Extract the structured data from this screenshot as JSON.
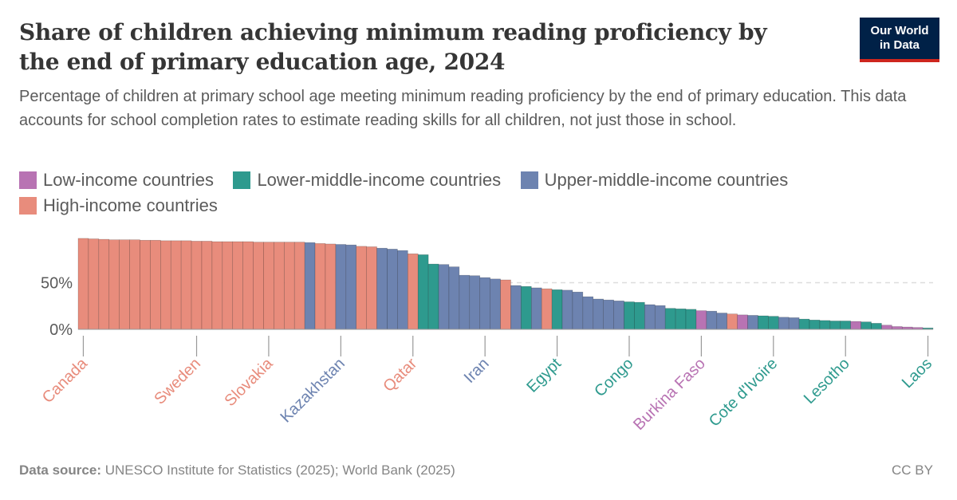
{
  "header": {
    "title": "Share of children achieving minimum reading proficiency by the end of primary education age, 2024",
    "subtitle": "Percentage of children at primary school age meeting minimum reading proficiency by the end of primary education. This data accounts for school completion rates to estimate reading skills for all children, not just those in school.",
    "logo_line1": "Our World",
    "logo_line2": "in Data"
  },
  "legend": [
    {
      "label": "Low-income countries",
      "color": "#b873b3"
    },
    {
      "label": "Lower-middle-income countries",
      "color": "#2e9a8e"
    },
    {
      "label": "Upper-middle-income countries",
      "color": "#6d83b0"
    },
    {
      "label": "High-income countries",
      "color": "#e88c7c"
    }
  ],
  "footer": {
    "source_label": "Data source:",
    "source_text": "UNESCO Institute for Statistics (2025); World Bank (2025)",
    "license": "CC BY"
  },
  "chart_data": {
    "type": "bar",
    "ylabel": "",
    "ylim": [
      0,
      100
    ],
    "yticks": [
      "0%",
      "50%"
    ],
    "yticks_values": [
      0,
      50
    ],
    "colors": {
      "L": "#b873b3",
      "LM": "#2e9a8e",
      "UM": "#6d83b0",
      "H": "#e88c7c"
    },
    "labeled_countries": [
      {
        "label": "Canada",
        "index": 0,
        "group": "H"
      },
      {
        "label": "Sweden",
        "index": 11,
        "group": "H"
      },
      {
        "label": "Slovakia",
        "index": 18,
        "group": "H"
      },
      {
        "label": "Kazakhstan",
        "index": 25,
        "group": "UM"
      },
      {
        "label": "Qatar",
        "index": 32,
        "group": "H"
      },
      {
        "label": "Iran",
        "index": 39,
        "group": "UM"
      },
      {
        "label": "Egypt",
        "index": 46,
        "group": "LM"
      },
      {
        "label": "Congo",
        "index": 53,
        "group": "LM"
      },
      {
        "label": "Burkina Faso",
        "index": 60,
        "group": "L"
      },
      {
        "label": "Cote d'Ivoire",
        "index": 67,
        "group": "LM"
      },
      {
        "label": "Lesotho",
        "index": 74,
        "group": "LM"
      },
      {
        "label": "Laos",
        "index": 82,
        "group": "LM"
      }
    ],
    "bars": [
      {
        "value": 97.5,
        "group": "H"
      },
      {
        "value": 97,
        "group": "H"
      },
      {
        "value": 96.5,
        "group": "H"
      },
      {
        "value": 96,
        "group": "H"
      },
      {
        "value": 96,
        "group": "H"
      },
      {
        "value": 96,
        "group": "H"
      },
      {
        "value": 95.5,
        "group": "H"
      },
      {
        "value": 95.5,
        "group": "H"
      },
      {
        "value": 95,
        "group": "H"
      },
      {
        "value": 95,
        "group": "H"
      },
      {
        "value": 95,
        "group": "H"
      },
      {
        "value": 94.5,
        "group": "H"
      },
      {
        "value": 94.5,
        "group": "H"
      },
      {
        "value": 94,
        "group": "H"
      },
      {
        "value": 94,
        "group": "H"
      },
      {
        "value": 94,
        "group": "H"
      },
      {
        "value": 94,
        "group": "H"
      },
      {
        "value": 93.5,
        "group": "H"
      },
      {
        "value": 93.5,
        "group": "H"
      },
      {
        "value": 93.5,
        "group": "H"
      },
      {
        "value": 93.5,
        "group": "H"
      },
      {
        "value": 93.5,
        "group": "H"
      },
      {
        "value": 93,
        "group": "UM"
      },
      {
        "value": 92,
        "group": "H"
      },
      {
        "value": 91.5,
        "group": "H"
      },
      {
        "value": 91,
        "group": "UM"
      },
      {
        "value": 90.5,
        "group": "UM"
      },
      {
        "value": 89,
        "group": "H"
      },
      {
        "value": 88.5,
        "group": "H"
      },
      {
        "value": 87,
        "group": "UM"
      },
      {
        "value": 86,
        "group": "UM"
      },
      {
        "value": 84.5,
        "group": "UM"
      },
      {
        "value": 81,
        "group": "H"
      },
      {
        "value": 80,
        "group": "LM"
      },
      {
        "value": 70,
        "group": "LM"
      },
      {
        "value": 69.5,
        "group": "UM"
      },
      {
        "value": 67,
        "group": "UM"
      },
      {
        "value": 58,
        "group": "UM"
      },
      {
        "value": 57.5,
        "group": "UM"
      },
      {
        "value": 55.5,
        "group": "UM"
      },
      {
        "value": 54,
        "group": "UM"
      },
      {
        "value": 53,
        "group": "H"
      },
      {
        "value": 47,
        "group": "UM"
      },
      {
        "value": 46,
        "group": "LM"
      },
      {
        "value": 44.5,
        "group": "UM"
      },
      {
        "value": 43.5,
        "group": "H"
      },
      {
        "value": 42.5,
        "group": "LM"
      },
      {
        "value": 42,
        "group": "UM"
      },
      {
        "value": 40,
        "group": "UM"
      },
      {
        "value": 35,
        "group": "UM"
      },
      {
        "value": 32.5,
        "group": "UM"
      },
      {
        "value": 31.5,
        "group": "UM"
      },
      {
        "value": 30.5,
        "group": "UM"
      },
      {
        "value": 29.5,
        "group": "LM"
      },
      {
        "value": 29,
        "group": "LM"
      },
      {
        "value": 26.5,
        "group": "UM"
      },
      {
        "value": 25.5,
        "group": "UM"
      },
      {
        "value": 22.5,
        "group": "LM"
      },
      {
        "value": 22,
        "group": "LM"
      },
      {
        "value": 21.5,
        "group": "LM"
      },
      {
        "value": 20,
        "group": "L"
      },
      {
        "value": 19.5,
        "group": "UM"
      },
      {
        "value": 17.5,
        "group": "UM"
      },
      {
        "value": 16.5,
        "group": "H"
      },
      {
        "value": 15.5,
        "group": "L"
      },
      {
        "value": 15,
        "group": "UM"
      },
      {
        "value": 14.5,
        "group": "LM"
      },
      {
        "value": 14,
        "group": "LM"
      },
      {
        "value": 13,
        "group": "UM"
      },
      {
        "value": 12.5,
        "group": "UM"
      },
      {
        "value": 11,
        "group": "LM"
      },
      {
        "value": 10,
        "group": "LM"
      },
      {
        "value": 9.5,
        "group": "LM"
      },
      {
        "value": 9,
        "group": "LM"
      },
      {
        "value": 9,
        "group": "LM"
      },
      {
        "value": 8.5,
        "group": "L"
      },
      {
        "value": 8,
        "group": "LM"
      },
      {
        "value": 6.5,
        "group": "LM"
      },
      {
        "value": 4.5,
        "group": "L"
      },
      {
        "value": 3,
        "group": "L"
      },
      {
        "value": 2.5,
        "group": "L"
      },
      {
        "value": 2,
        "group": "L"
      },
      {
        "value": 1.5,
        "group": "LM"
      }
    ]
  }
}
